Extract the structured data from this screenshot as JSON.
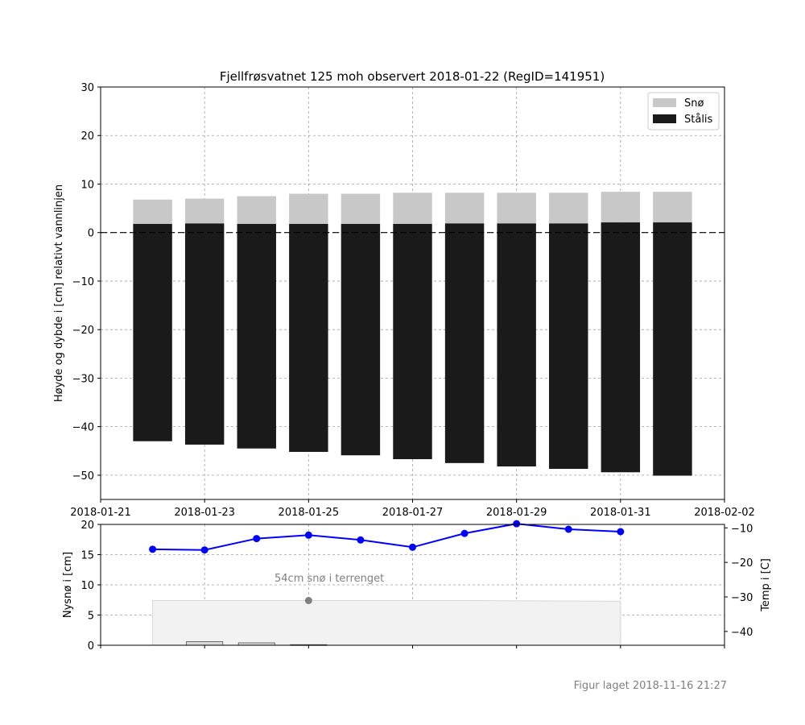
{
  "footer": {
    "created": "Figur laget 2018-11-16 21:27"
  },
  "colors": {
    "snow": "#c8c8c8",
    "ice": "#1a1a1a",
    "temp": "#0000ff",
    "newsnow_fill": "#f2f2f2",
    "annotation": "#808080",
    "grid": "#a0a0a0"
  },
  "chart_data": [
    {
      "type": "bar",
      "title": "Fjellfrøsvatnet 125 moh observert 2018-01-22 (RegID=141951)",
      "ylabel": "Høyde og dybde i [cm] relativt vannlinjen",
      "xlabel": "",
      "ylim": [
        -55,
        30
      ],
      "yticks": [
        "30",
        "20",
        "10",
        "0",
        "−10",
        "−20",
        "−30",
        "−40",
        "−50"
      ],
      "ytick_values": [
        30,
        20,
        10,
        0,
        -10,
        -20,
        -30,
        -40,
        -50
      ],
      "xlim": [
        "2018-01-21",
        "2018-02-02"
      ],
      "xticks": [
        "2018-01-21",
        "2018-01-23",
        "2018-01-25",
        "2018-01-27",
        "2018-01-29",
        "2018-01-31",
        "2018-02-02"
      ],
      "grid": true,
      "legend_position": "top-right",
      "stacked": true,
      "categories": [
        "2018-01-22",
        "2018-01-23",
        "2018-01-24",
        "2018-01-25",
        "2018-01-26",
        "2018-01-27",
        "2018-01-28",
        "2018-01-29",
        "2018-01-30",
        "2018-01-31",
        "2018-02-01"
      ],
      "series": [
        {
          "name": "Stålis",
          "bottom": [
            -43.0,
            -43.7,
            -44.5,
            -45.2,
            -45.9,
            -46.7,
            -47.5,
            -48.2,
            -48.7,
            -49.4,
            -50.1
          ],
          "top": [
            1.8,
            1.9,
            1.8,
            1.8,
            1.8,
            1.8,
            1.9,
            1.9,
            1.9,
            2.1,
            2.1
          ]
        },
        {
          "name": "Snø",
          "bottom": [
            1.8,
            1.9,
            1.8,
            1.8,
            1.8,
            1.8,
            1.9,
            1.9,
            1.9,
            2.1,
            2.1
          ],
          "top": [
            6.8,
            7.0,
            7.5,
            8.0,
            8.0,
            8.2,
            8.2,
            8.2,
            8.2,
            8.4,
            8.4
          ]
        }
      ],
      "reference_line": 0
    },
    {
      "type": "bar",
      "ylabel": "Nysnø i [cm]",
      "ylim": [
        0,
        20
      ],
      "yticks": [
        "0",
        "5",
        "10",
        "15",
        "20"
      ],
      "ytick_values": [
        0,
        5,
        10,
        15,
        20
      ],
      "xlim": [
        "2018-01-21",
        "2018-02-02"
      ],
      "grid": true,
      "newsnow": {
        "x": [
          "2018-01-23",
          "2018-01-24",
          "2018-01-25"
        ],
        "values": [
          0.6,
          0.4,
          0.1
        ]
      },
      "terrain_snow": {
        "x": [
          "2018-01-22",
          "2018-01-28",
          "2018-01-31"
        ],
        "values": [
          7.4,
          7.4,
          7.3
        ],
        "point": {
          "x": "2018-01-25",
          "value": 7.4
        },
        "annotation": "54cm snø i terrenget"
      },
      "temperature": {
        "ylabel": "Temp i [C]",
        "ylim": [
          -44,
          -9
        ],
        "yticks": [
          "−10",
          "−20",
          "−30",
          "−40"
        ],
        "ytick_values": [
          -10,
          -20,
          -30,
          -40
        ],
        "x": [
          "2018-01-22",
          "2018-01-23",
          "2018-01-24",
          "2018-01-25",
          "2018-01-26",
          "2018-01-27",
          "2018-01-28",
          "2018-01-29",
          "2018-01-30",
          "2018-01-31"
        ],
        "values": [
          -16.2,
          -16.4,
          -13.1,
          -12.1,
          -13.5,
          -15.6,
          -11.6,
          -8.8,
          -10.4,
          -11.1
        ]
      }
    }
  ]
}
